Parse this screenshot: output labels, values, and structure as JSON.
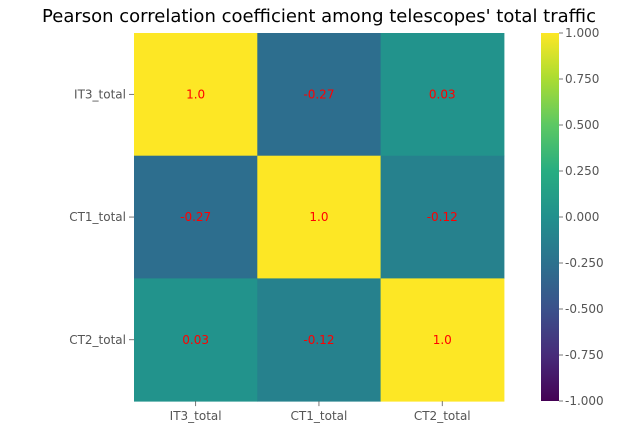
{
  "chart_data": {
    "type": "heatmap",
    "title": "Pearson correlation coefficient among telescopes' total traffic",
    "xlabel": "",
    "ylabel": "",
    "row_labels": [
      "IT3_total",
      "CT1_total",
      "CT2_total"
    ],
    "col_labels": [
      "IT3_total",
      "CT1_total",
      "CT2_total"
    ],
    "values": [
      [
        1.0,
        -0.27,
        0.03
      ],
      [
        -0.27,
        1.0,
        -0.12
      ],
      [
        0.03,
        -0.12,
        1.0
      ]
    ],
    "cell_labels": [
      [
        "1.0",
        "-0.27",
        "0.03"
      ],
      [
        "-0.27",
        "1.0",
        "-0.12"
      ],
      [
        "0.03",
        "-0.12",
        "1.0"
      ]
    ],
    "annotation_color": "#ff0000",
    "colormap": "viridis",
    "vmin": -1.0,
    "vmax": 1.0,
    "colorbar_ticks": [
      1.0,
      0.75,
      0.5,
      0.25,
      0.0,
      -0.25,
      -0.5,
      -0.75,
      -1.0
    ],
    "colorbar_tick_labels": [
      "1.000",
      "0.750",
      "0.500",
      "0.250",
      "0.000",
      "-0.250",
      "-0.500",
      "-0.750",
      "-1.000"
    ],
    "grid": false
  }
}
